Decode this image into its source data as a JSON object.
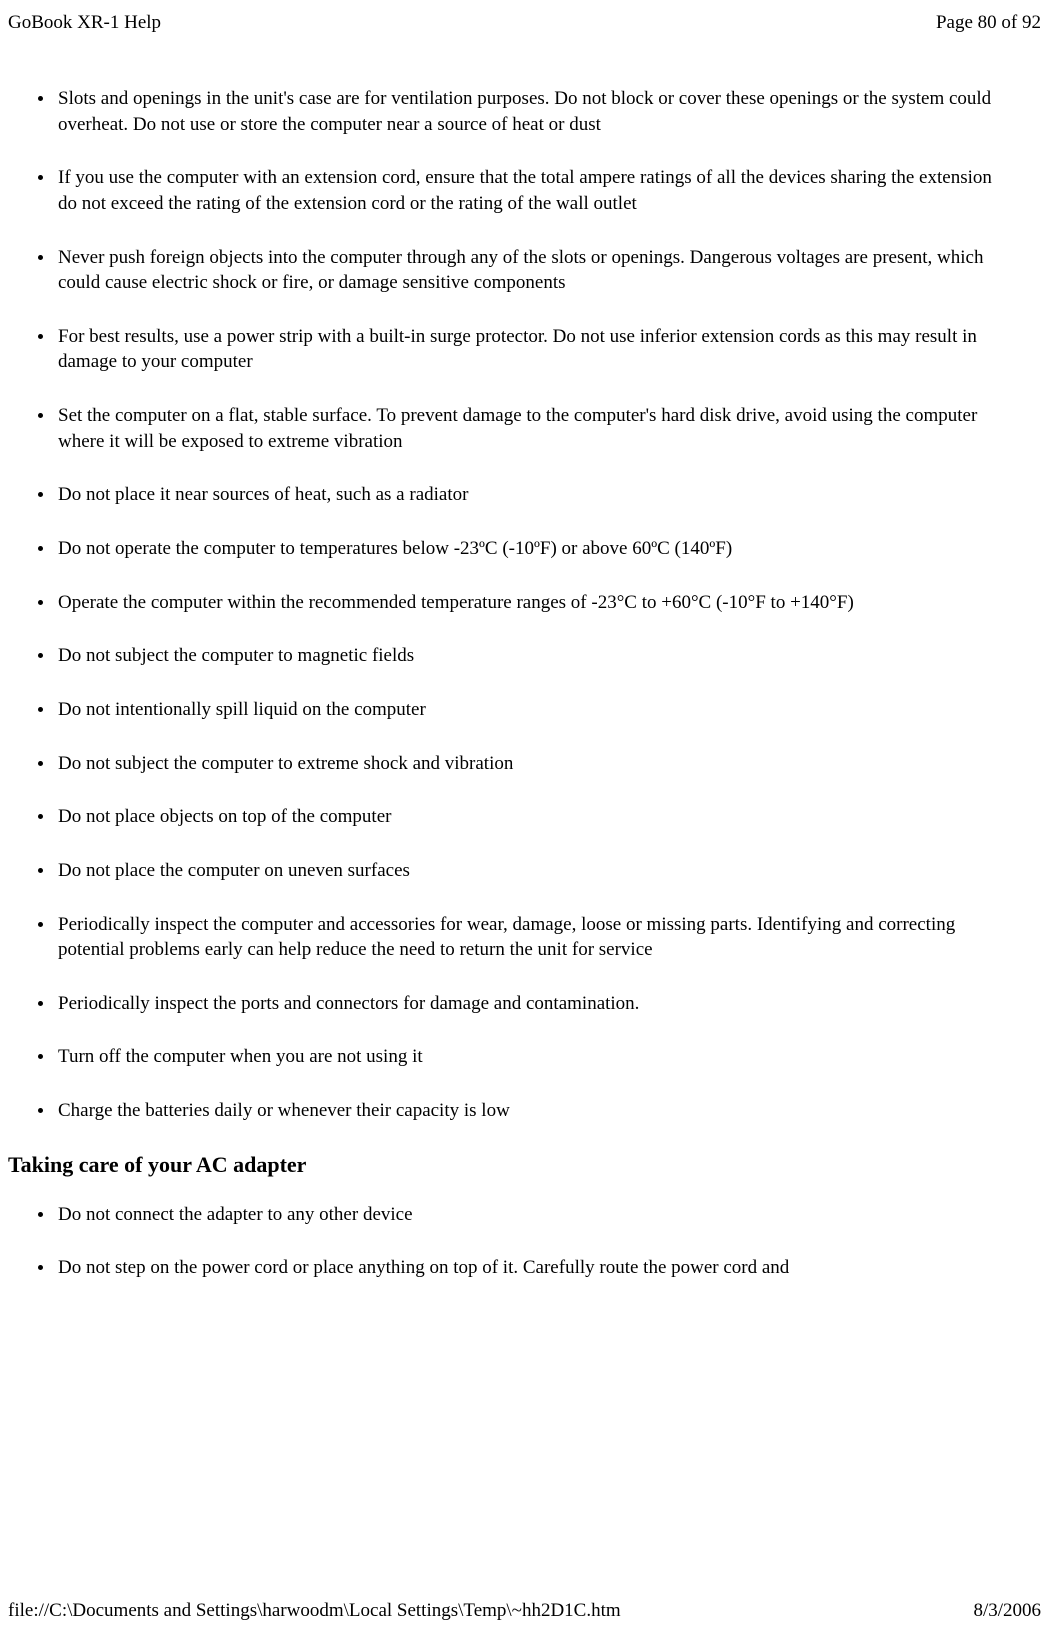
{
  "header": {
    "title": "GoBook XR-1 Help",
    "page_info": "Page 80 of 92"
  },
  "bullets": {
    "items": [
      "Slots and openings in the unit's case are for ventilation purposes. Do not block or cover these openings or the system could overheat. Do not use or store the computer near a source of heat or dust",
      "If you use the computer with an extension cord, ensure that the total ampere ratings of all the devices sharing the extension do not exceed the rating of the extension cord or the rating of the wall outlet",
      "Never push foreign objects into the computer through any of the slots or openings. Dangerous voltages are present, which could cause electric shock or fire, or damage sensitive components",
      "For best results, use a power strip with a built-in surge protector. Do not use inferior extension cords as this may result in damage to your computer",
      "Set the computer on a flat, stable surface. To prevent damage to the computer's hard disk drive, avoid using the computer where it will be exposed to extreme vibration",
      "Do not place it near sources of heat, such as a radiator",
      "Do not operate the computer to temperatures below -23ºC (-10ºF) or above 60ºC (140ºF)",
      "Operate the computer within the recommended temperature ranges of  -23°C to +60°C (-10°F to +140°F)",
      "Do not subject the computer to magnetic fields",
      "Do not intentionally spill liquid on the computer",
      "Do not subject the computer to extreme shock and vibration",
      "Do not place objects on top of the computer",
      "Do not place the computer on uneven surfaces",
      "Periodically inspect the computer and accessories for wear, damage, loose or missing parts. Identifying and correcting potential problems early can help reduce the need to return the unit for service",
      "Periodically inspect the ports and connectors for damage and contamination.",
      "Turn off the computer when you are not using it",
      "Charge the batteries daily or whenever their capacity is low"
    ]
  },
  "section_heading": "Taking care of your AC adapter",
  "adapter_bullets": {
    "items": [
      "Do not connect the adapter to any other device",
      "Do not step on the power cord or place anything on top of it. Carefully route the power cord and"
    ]
  },
  "footer": {
    "path": "file://C:\\Documents and Settings\\harwoodm\\Local Settings\\Temp\\~hh2D1C.htm",
    "date": "8/3/2006"
  }
}
